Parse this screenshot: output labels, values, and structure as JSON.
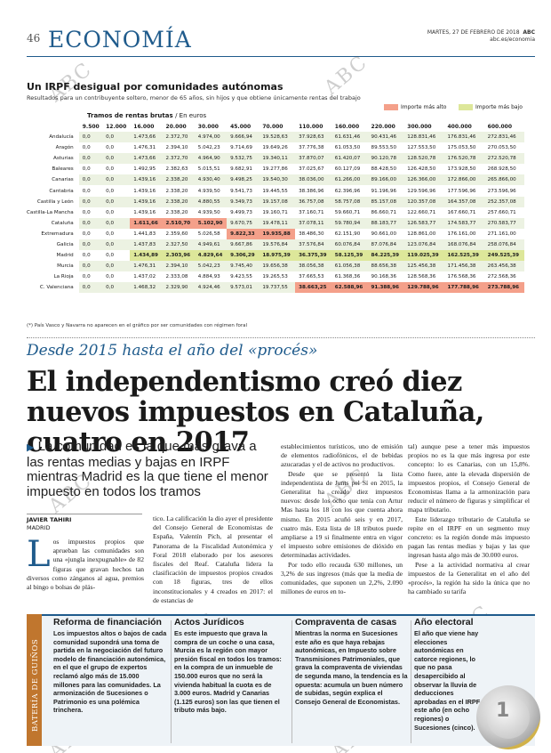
{
  "header": {
    "page_number": "46",
    "section": "ECONOMÍA",
    "dateline": "MARTES, 27 DE FEBRERO DE 2018",
    "brand": "ABC",
    "site": "abc.es/economia"
  },
  "watermark": "ABC",
  "chart": {
    "title": "Un IRPF desigual por comunidades autónomas",
    "subtitle": "Resultados para un contribuyente soltero, menor de 65 años, sin hijos y que obtiene únicamente rentas del trabajo",
    "legend_high": "Importe más alto",
    "legend_low": "Importe más bajo",
    "tramos_label": "Tramos de rentas brutas",
    "tramos_unit": "/ En euros",
    "footnote": "(*) País Vasco y Navarra no aparecen en el gráfico por ser comunidades con régimen foral"
  },
  "chart_data": {
    "type": "table",
    "title": "Un IRPF desigual por comunidades autónomas",
    "columns": [
      "9.500",
      "12.000",
      "16.000",
      "20.000",
      "30.000",
      "45.000",
      "70.000",
      "110.000",
      "160.000",
      "220.000",
      "300.000",
      "400.000",
      "600.000"
    ],
    "rows": [
      {
        "region": "Andalucía",
        "values": [
          "0,0",
          "0,0",
          "1.473,66",
          "2.372,70",
          "4.974,00",
          "9.666,94",
          "19.528,63",
          "37.928,63",
          "61.631,46",
          "90.431,46",
          "128.831,46",
          "176.831,46",
          "272.831,46"
        ],
        "flags": [
          "",
          "",
          "",
          "",
          "",
          "",
          "",
          "",
          "",
          "",
          "",
          "",
          ""
        ]
      },
      {
        "region": "Aragón",
        "values": [
          "0,0",
          "0,0",
          "1.476,31",
          "2.394,10",
          "5.042,23",
          "9.714,69",
          "19.649,26",
          "37.776,38",
          "61.053,50",
          "89.553,50",
          "127.553,50",
          "175.053,50",
          "270.053,50"
        ],
        "flags": [
          "",
          "",
          "",
          "",
          "",
          "",
          "",
          "",
          "",
          "",
          "",
          "",
          ""
        ]
      },
      {
        "region": "Asturias",
        "values": [
          "0,0",
          "0,0",
          "1.473,66",
          "2.372,70",
          "4.964,90",
          "9.532,75",
          "19.340,11",
          "37.870,07",
          "61.420,07",
          "90.120,78",
          "128.520,78",
          "176.520,78",
          "272.520,78"
        ],
        "flags": [
          "",
          "",
          "",
          "",
          "",
          "",
          "",
          "",
          "",
          "",
          "",
          "",
          ""
        ]
      },
      {
        "region": "Baleares",
        "values": [
          "0,0",
          "0,0",
          "1.492,95",
          "2.382,63",
          "5.015,51",
          "9.682,91",
          "19.277,86",
          "37.025,67",
          "60.127,09",
          "88.428,50",
          "126.428,50",
          "173.928,50",
          "268.928,50"
        ],
        "flags": [
          "",
          "",
          "",
          "",
          "",
          "",
          "",
          "",
          "",
          "",
          "",
          "",
          ""
        ]
      },
      {
        "region": "Canarias",
        "values": [
          "0,0",
          "0,0",
          "1.439,16",
          "2.338,20",
          "4.930,40",
          "9.498,25",
          "19.540,30",
          "38.036,00",
          "61.266,00",
          "89.166,00",
          "126.366,00",
          "172.866,00",
          "265.866,00"
        ],
        "flags": [
          "",
          "",
          "",
          "",
          "",
          "",
          "",
          "",
          "",
          "",
          "",
          "",
          ""
        ]
      },
      {
        "region": "Cantabria",
        "values": [
          "0,0",
          "0,0",
          "1.439,16",
          "2.338,20",
          "4.939,50",
          "9.541,73",
          "19.445,55",
          "38.386,96",
          "62.396,96",
          "91.196,96",
          "129.596,96",
          "177.596,96",
          "273.596,96"
        ],
        "flags": [
          "",
          "",
          "",
          "",
          "",
          "",
          "",
          "",
          "",
          "",
          "",
          "",
          ""
        ]
      },
      {
        "region": "Castilla y León",
        "values": [
          "0,0",
          "0,0",
          "1.439,16",
          "2.338,20",
          "4.880,55",
          "9.349,73",
          "19.157,08",
          "36.757,08",
          "58.757,08",
          "85.157,08",
          "120.357,08",
          "164.357,08",
          "252.357,08"
        ],
        "flags": [
          "",
          "",
          "",
          "",
          "",
          "",
          "",
          "",
          "",
          "",
          "",
          "",
          ""
        ]
      },
      {
        "region": "Castilla-La Mancha",
        "values": [
          "0,0",
          "0,0",
          "1.439,16",
          "2.338,20",
          "4.939,50",
          "9.499,73",
          "19.160,71",
          "37.160,71",
          "59.660,71",
          "86.660,71",
          "122.660,71",
          "167.660,71",
          "257.660,71"
        ],
        "flags": [
          "",
          "",
          "",
          "",
          "",
          "",
          "",
          "",
          "",
          "",
          "",
          "",
          ""
        ]
      },
      {
        "region": "Cataluña",
        "values": [
          "0,0",
          "0,0",
          "1.611,66",
          "2.510,70",
          "5.102,90",
          "9.670,75",
          "19.478,11",
          "37.078,11",
          "59.780,94",
          "88.183,77",
          "126.583,77",
          "174.583,77",
          "270.583,77"
        ],
        "flags": [
          "",
          "",
          "hi",
          "hi",
          "hi",
          "",
          "",
          "",
          "",
          "",
          "",
          "",
          ""
        ]
      },
      {
        "region": "Extremadura",
        "values": [
          "0,0",
          "0,0",
          "1.441,83",
          "2.359,60",
          "5.026,58",
          "9.822,33",
          "19.935,88",
          "38.486,30",
          "62.151,90",
          "90.661,00",
          "128.861,00",
          "176.161,00",
          "271.161,00"
        ],
        "flags": [
          "",
          "",
          "",
          "",
          "",
          "hi",
          "hi",
          "",
          "",
          "",
          "",
          "",
          ""
        ]
      },
      {
        "region": "Galicia",
        "values": [
          "0,0",
          "0,0",
          "1.437,83",
          "2.327,50",
          "4.949,61",
          "9.667,86",
          "19.576,84",
          "37.576,84",
          "60.076,84",
          "87.076,84",
          "123.076,84",
          "168.076,84",
          "258.076,84"
        ],
        "flags": [
          "",
          "",
          "",
          "",
          "",
          "",
          "",
          "",
          "",
          "",
          "",
          "",
          ""
        ]
      },
      {
        "region": "Madrid",
        "values": [
          "0,0",
          "0,0",
          "1.434,89",
          "2.303,96",
          "4.829,64",
          "9.306,29",
          "18.975,39",
          "36.375,39",
          "58.125,39",
          "84.225,39",
          "119.025,39",
          "162.525,39",
          "249.525,39"
        ],
        "flags": [
          "",
          "",
          "lo",
          "lo",
          "lo",
          "lo",
          "lo",
          "lo",
          "lo",
          "lo",
          "lo",
          "lo",
          "lo"
        ]
      },
      {
        "region": "Murcia",
        "values": [
          "0,0",
          "0,0",
          "1.476,31",
          "2.394,10",
          "5.042,23",
          "9.745,40",
          "19.656,38",
          "38.056,38",
          "61.056,38",
          "88.656,38",
          "125.456,38",
          "171.456,38",
          "263.456,38"
        ],
        "flags": [
          "",
          "",
          "",
          "",
          "",
          "",
          "",
          "",
          "",
          "",
          "",
          "",
          ""
        ]
      },
      {
        "region": "La Rioja",
        "values": [
          "0,0",
          "0,0",
          "1.437,02",
          "2.333,08",
          "4.884,93",
          "9.423,55",
          "19.265,53",
          "37.665,53",
          "61.368,36",
          "90.168,36",
          "128.568,36",
          "176.568,36",
          "272.568,36"
        ],
        "flags": [
          "",
          "",
          "",
          "",
          "",
          "",
          "",
          "",
          "",
          "",
          "",
          "",
          ""
        ]
      },
      {
        "region": "C. Valenciana",
        "values": [
          "0,0",
          "0,0",
          "1.468,32",
          "2.329,90",
          "4.924,46",
          "9.573,01",
          "19.737,55",
          "38.663,25",
          "62.588,96",
          "91.388,96",
          "129.788,96",
          "177.788,96",
          "273.788,96"
        ],
        "flags": [
          "",
          "",
          "",
          "",
          "",
          "",
          "",
          "hi",
          "hi",
          "hi",
          "hi",
          "hi",
          "hi"
        ]
      }
    ],
    "legend": [
      "Importe más alto",
      "Importe más bajo"
    ],
    "colors": {
      "high": "#f4a08a",
      "low": "#dde79a",
      "stripe": "#ecf2e2"
    }
  },
  "article": {
    "kicker": "Desde 2015 hasta el año del «procés»",
    "headline": "El independentismo creó diez nuevos impuestos en Cataluña, cuatro en 2017",
    "subhead": "La comunidad es la que más grava a las rentas medias y bajas en IRPF mientras Madrid es la que tiene el menor impuesto en todos los tramos",
    "author": "JAVIER TAHIRI",
    "place": "MADRID",
    "drop_cap": "L",
    "col1": "os impuestos propios que aprueban las comunidades son una «jungla inexpugnable» de 82 figuras que gravan hechos tan diversos como zánganos al agua, premios al bingo o bolsas de plás-",
    "col2": "tico. La calificación la dio ayer el presidente del Consejo General de Economistas de España, Valentín Pich, al presentar el Panorama de la Fiscalidad Autonómica y Foral 2018 elaborado por los asesores fiscales del Reaf. Cataluña lidera la clasificación de impuestos propios creados con 18 figuras, tres de ellos inconstitucionales y 4 creados en 2017: el de estancias de",
    "col3a": "establecimientos turísticos, uno de emisión de elementos radiofónicos, el de bebidas azucaradas y el de activos no productivos.",
    "col3b": "Desde que se presentó la lista independentista de Junts pel Sí en 2015, la Generalitat ha creado diez impuestos nuevos: desde los ocho que tenía con Artur Mas hasta los 18 con los que cuenta ahora mismo. En 2015 acuñó seis y en 2017, cuatro más. Esta lista de 18 tributos puede ampliarse a 19 si finalmente entra en vigor el impuesto sobre emisiones de dióxido en determinadas actividades.",
    "col3c": "Por todo ello recauda 630 millones, un 3,2% de sus ingresos (más que la media de comunidades, que suponen un 2,2%, 2.090 millones de euros en to-",
    "col4a": "tal) aunque pese a tener más impuestos propios no es la que más ingresa por este concepto: lo es Canarias, con un 15,8%. Como fuere, ante la elevada dispersión de impuestos propios, el Consejo General de Economistas llama a la armonización para reducir el número de figuras y simplificar el mapa tributario.",
    "col4b": "Este liderazgo tributario de Cataluña se repite en el IRPF en un segmento muy concreto: es la región donde más impuesto pagan las rentas medias y bajas y las que ingresan hasta algo más de 30.000 euros.",
    "col4c": "Pese a la actividad normativa al crear impuestos de la Generalitat en el año del «procés», la región ha sido la única que no ha cambiado su tarifa"
  },
  "sidebar": {
    "label": "BATERÍA DE GUIÑOS",
    "items": [
      {
        "title": "Reforma de financiación",
        "text": "Los impuestos altos o bajos de cada comunidad supondrá una toma de partida en la negociación del futuro modelo de financiación autonómica, en el que el grupo de expertos reclamó algo más de 15.000 millones para las comunidades. La armonización de Sucesiones o Patrimonio es una polémica trinchera."
      },
      {
        "title": "Actos Jurídicos",
        "text": "Es este impuesto que grava la compra de un coche o una casa, Murcia es la región con mayor presión fiscal en todos los tramos: en la compra de un inmueble de 150.000 euros que no será la vivienda habitual la cuota es de 3.000 euros. Madrid y Canarias (1.125 euros) son las que tienen el tributo más bajo."
      },
      {
        "title": "Compraventa de casas",
        "text": "Mientras la norma en Sucesiones este año es que haya rebajas autonómicas, en Impuesto sobre Transmisiones Patrimoniales, que grava la compraventa de viviendas de segunda mano, la tendencia es la opuesta: acumula un buen número de subidas, según explica el Consejo General de Economistas."
      },
      {
        "title": "Año electoral",
        "text": "El año que viene hay elecciones autonómicas en catorce regiones, lo que no pasa desapercibido al observar la lluvia de deducciones aprobadas en el IRPF este año (en ocho regiones) o Sucesiones (cinco)."
      }
    ]
  }
}
